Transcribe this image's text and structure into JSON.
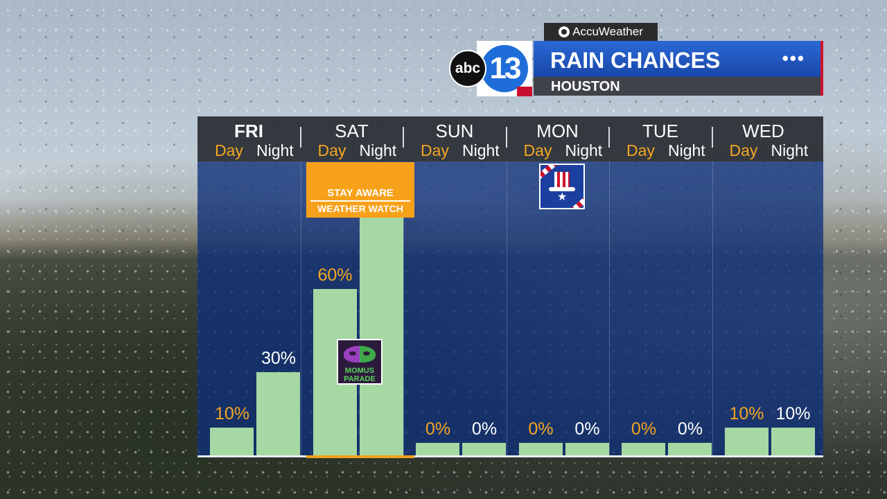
{
  "header": {
    "sponsor": "AccuWeather",
    "station_abc": "abc",
    "station_number": "13",
    "title": "RAIN CHANCES",
    "subtitle": "HOUSTON",
    "menu_icon": "more-dots-icon"
  },
  "days": [
    {
      "name": "FRI",
      "day_label": "Day",
      "night_label": "Night",
      "day_pct": "10%",
      "night_pct": "30%"
    },
    {
      "name": "SAT",
      "day_label": "Day",
      "night_label": "Night",
      "day_pct": "60%",
      "night_pct": "90%"
    },
    {
      "name": "SUN",
      "day_label": "Day",
      "night_label": "Night",
      "day_pct": "0%",
      "night_pct": "0%"
    },
    {
      "name": "MON",
      "day_label": "Day",
      "night_label": "Night",
      "day_pct": "0%",
      "night_pct": "0%"
    },
    {
      "name": "TUE",
      "day_label": "Day",
      "night_label": "Night",
      "day_pct": "0%",
      "night_pct": "0%"
    },
    {
      "name": "WED",
      "day_label": "Day",
      "night_label": "Night",
      "day_pct": "10%",
      "night_pct": "10%"
    }
  ],
  "badges": {
    "watch_line1": "STAY AWARE",
    "watch_line2": "WEATHER WATCH",
    "parade_line1": "MOMUS",
    "parade_line2": "PARADE",
    "parade_icon": "mardi-gras-mask-icon",
    "holiday_icon": "uncle-sam-hat-icon"
  },
  "chart_data": {
    "type": "bar",
    "categories": [
      "FRI Day",
      "FRI Night",
      "SAT Day",
      "SAT Night",
      "SUN Day",
      "SUN Night",
      "MON Day",
      "MON Night",
      "TUE Day",
      "TUE Night",
      "WED Day",
      "WED Night"
    ],
    "values": [
      10,
      30,
      60,
      90,
      0,
      0,
      0,
      0,
      0,
      0,
      10,
      10
    ],
    "title": "RAIN CHANCES",
    "xlabel": "",
    "ylabel": "",
    "ylim": [
      0,
      100
    ],
    "colors": {
      "bar": "#a6d8a4",
      "day_label": "#f5a623",
      "night_label": "#ffffff",
      "panel": "#0e3078"
    }
  }
}
